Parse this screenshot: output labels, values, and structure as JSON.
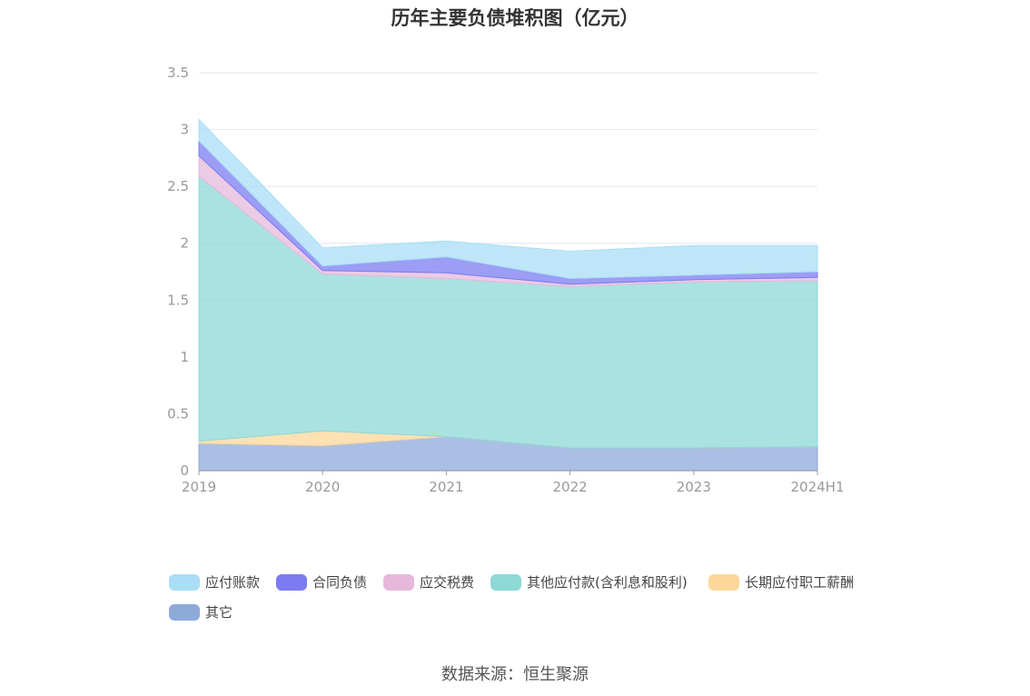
{
  "title": "历年主要负债堆积图（亿元）",
  "source": "数据来源：恒生聚源",
  "chart_data": {
    "type": "area",
    "stacked": true,
    "title": "历年主要负债堆积图（亿元）",
    "categories": [
      "2019",
      "2020",
      "2021",
      "2022",
      "2023",
      "2024H1"
    ],
    "y_ticks": [
      "0",
      "0.5",
      "1",
      "1.5",
      "2",
      "2.5",
      "3",
      "3.5"
    ],
    "ylim": [
      0,
      3.5
    ],
    "grid": true,
    "legend_position": "bottom",
    "series": [
      {
        "name": "其它",
        "color": "#8eaad9",
        "values": [
          0.24,
          0.22,
          0.3,
          0.2,
          0.2,
          0.21
        ]
      },
      {
        "name": "长期应付职工薪酬",
        "color": "#fcd799",
        "values": [
          0.02,
          0.13,
          0.0,
          0.0,
          0.0,
          0.0
        ]
      },
      {
        "name": "其他应付款(含利息和股利)",
        "color": "#8ed8d8",
        "values": [
          2.33,
          1.38,
          1.39,
          1.42,
          1.46,
          1.46
        ]
      },
      {
        "name": "应交税费",
        "color": "#e6b9dc",
        "values": [
          0.18,
          0.03,
          0.05,
          0.02,
          0.02,
          0.03
        ]
      },
      {
        "name": "合同负债",
        "color": "#7b7cf2",
        "values": [
          0.13,
          0.04,
          0.14,
          0.05,
          0.04,
          0.05
        ]
      },
      {
        "name": "应付账款",
        "color": "#a9def6",
        "values": [
          0.19,
          0.16,
          0.14,
          0.24,
          0.26,
          0.23
        ]
      }
    ],
    "legend_order": [
      "应付账款",
      "合同负债",
      "应交税费",
      "其他应付款(含利息和股利)",
      "长期应付职工薪酬",
      "其它"
    ]
  }
}
